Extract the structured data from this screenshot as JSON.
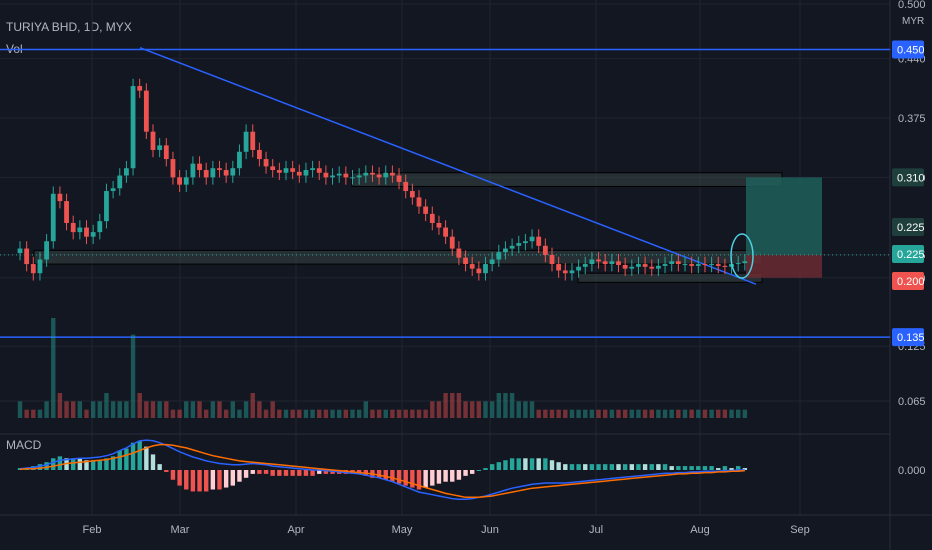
{
  "header": {
    "symbol": "TURIYA BHD, 1D, MYX",
    "vol_label": "Vol",
    "macd_label": "MACD",
    "currency": "MYR"
  },
  "colors": {
    "background": "#131722",
    "grid": "#1f2430",
    "up": "#26a69a",
    "down": "#ef5350",
    "trendline": "#2962ff",
    "hline": "#2962ff",
    "text": "#b2b5be",
    "macd_line": "#2962ff",
    "signal_line": "#ff6d00",
    "target_zone": "#1f5f5b",
    "stop_zone": "#6b2a31"
  },
  "chart_data": {
    "type": "candlestick",
    "x_ticks": [
      "Feb",
      "Mar",
      "Apr",
      "May",
      "Jun",
      "Jul",
      "Aug",
      "Sep"
    ],
    "price_ticks": [
      0.5,
      0.44,
      0.375,
      0.31,
      0.225,
      0.2,
      0.125,
      0.065
    ],
    "price_tags": [
      {
        "value": "0.450",
        "color": "#2962ff"
      },
      {
        "value": "0.310",
        "color": "#1f3f3c"
      },
      {
        "value": "0.225",
        "color": "#1f3f3c"
      },
      {
        "value": "0.225",
        "color": "#26a69a"
      },
      {
        "value": "0.200",
        "color": "#ef5350"
      },
      {
        "value": "0.135",
        "color": "#2962ff"
      }
    ],
    "macd_ticks": [
      "0.000"
    ],
    "horizontal_lines": [
      0.45,
      0.135
    ],
    "trendline": {
      "from": 0.452,
      "to": 0.193
    },
    "zones": [
      {
        "name": "resistance",
        "low": 0.3,
        "high": 0.315
      },
      {
        "name": "support",
        "low": 0.215,
        "high": 0.23
      },
      {
        "name": "lower-box",
        "low": 0.195,
        "high": 0.205
      }
    ],
    "position": {
      "entry": 0.225,
      "target": 0.31,
      "stop": 0.2
    },
    "close": [
      0.232,
      0.215,
      0.205,
      0.22,
      0.24,
      0.292,
      0.284,
      0.26,
      0.25,
      0.255,
      0.245,
      0.25,
      0.262,
      0.295,
      0.298,
      0.312,
      0.32,
      0.41,
      0.405,
      0.36,
      0.34,
      0.345,
      0.33,
      0.31,
      0.302,
      0.31,
      0.325,
      0.318,
      0.31,
      0.32,
      0.318,
      0.312,
      0.32,
      0.338,
      0.36,
      0.34,
      0.33,
      0.322,
      0.318,
      0.315,
      0.32,
      0.316,
      0.312,
      0.318,
      0.32,
      0.315,
      0.31,
      0.312,
      0.314,
      0.31,
      0.31,
      0.312,
      0.315,
      0.313,
      0.31,
      0.315,
      0.312,
      0.305,
      0.295,
      0.288,
      0.278,
      0.27,
      0.26,
      0.255,
      0.245,
      0.232,
      0.222,
      0.215,
      0.21,
      0.205,
      0.215,
      0.22,
      0.228,
      0.232,
      0.235,
      0.238,
      0.24,
      0.245,
      0.235,
      0.225,
      0.215,
      0.208,
      0.205,
      0.208,
      0.212,
      0.215,
      0.22,
      0.218,
      0.215,
      0.218,
      0.214,
      0.21,
      0.212,
      0.215,
      0.212,
      0.21,
      0.213,
      0.215,
      0.218,
      0.215,
      0.215,
      0.213,
      0.215,
      0.214,
      0.215,
      0.213,
      0.212,
      0.215,
      0.216,
      0.218
    ],
    "volume": [
      2,
      1,
      1,
      1,
      2,
      12,
      3,
      2,
      2,
      2,
      1,
      2,
      2,
      3,
      2,
      2,
      2,
      10,
      3,
      2,
      2,
      2,
      2,
      1,
      1,
      2,
      2,
      2,
      1,
      2,
      2,
      1,
      2,
      1,
      2,
      3,
      2,
      1,
      2,
      1,
      1,
      1,
      1,
      1,
      1,
      1,
      1,
      1,
      1,
      1,
      1,
      1,
      2,
      1,
      1,
      1,
      1,
      1,
      1,
      1,
      1,
      1,
      2,
      2,
      3,
      3,
      3,
      2,
      2,
      2,
      2,
      2,
      3,
      3,
      3,
      2,
      2,
      2,
      1,
      1,
      1,
      1,
      1,
      1,
      1,
      1,
      1,
      1,
      1,
      1,
      1,
      1,
      1,
      1,
      1,
      1,
      1,
      1,
      1,
      1,
      1,
      1,
      1,
      1,
      1,
      1,
      1,
      1,
      1,
      1
    ],
    "macd": [
      0.002,
      0.003,
      0.004,
      0.006,
      0.008,
      0.012,
      0.015,
      0.016,
      0.017,
      0.018,
      0.018,
      0.019,
      0.02,
      0.022,
      0.025,
      0.03,
      0.034,
      0.04,
      0.045,
      0.046,
      0.045,
      0.042,
      0.038,
      0.033,
      0.028,
      0.024,
      0.02,
      0.017,
      0.014,
      0.012,
      0.01,
      0.009,
      0.008,
      0.008,
      0.009,
      0.01,
      0.009,
      0.008,
      0.006,
      0.005,
      0.004,
      0.003,
      0.002,
      0.001,
      0.0,
      0.0,
      -0.001,
      -0.002,
      -0.003,
      -0.004,
      -0.005,
      -0.006,
      -0.008,
      -0.01,
      -0.012,
      -0.015,
      -0.018,
      -0.022,
      -0.026,
      -0.03,
      -0.034,
      -0.036,
      -0.038,
      -0.04,
      -0.042,
      -0.044,
      -0.045,
      -0.045,
      -0.044,
      -0.042,
      -0.04,
      -0.037,
      -0.034,
      -0.031,
      -0.028,
      -0.026,
      -0.024,
      -0.022,
      -0.021,
      -0.02,
      -0.02,
      -0.02,
      -0.02,
      -0.019,
      -0.018,
      -0.017,
      -0.016,
      -0.015,
      -0.014,
      -0.013,
      -0.012,
      -0.011,
      -0.01,
      -0.009,
      -0.008,
      -0.007,
      -0.006,
      -0.005,
      -0.005,
      -0.004,
      -0.004,
      -0.003,
      -0.003,
      -0.002,
      -0.002,
      -0.002,
      -0.001,
      -0.001,
      0.0,
      0.0
    ],
    "signal": [
      0.001,
      0.002,
      0.002,
      0.003,
      0.004,
      0.006,
      0.008,
      0.01,
      0.011,
      0.012,
      0.013,
      0.014,
      0.015,
      0.016,
      0.018,
      0.02,
      0.023,
      0.026,
      0.03,
      0.034,
      0.037,
      0.039,
      0.039,
      0.038,
      0.036,
      0.034,
      0.031,
      0.028,
      0.025,
      0.022,
      0.02,
      0.018,
      0.016,
      0.014,
      0.013,
      0.012,
      0.011,
      0.01,
      0.009,
      0.008,
      0.007,
      0.006,
      0.005,
      0.004,
      0.003,
      0.002,
      0.001,
      0.0,
      -0.001,
      -0.002,
      -0.003,
      -0.004,
      -0.005,
      -0.006,
      -0.008,
      -0.01,
      -0.012,
      -0.015,
      -0.018,
      -0.021,
      -0.024,
      -0.027,
      -0.03,
      -0.033,
      -0.036,
      -0.038,
      -0.04,
      -0.042,
      -0.042,
      -0.042,
      -0.041,
      -0.04,
      -0.038,
      -0.036,
      -0.034,
      -0.032,
      -0.03,
      -0.028,
      -0.027,
      -0.026,
      -0.025,
      -0.024,
      -0.023,
      -0.022,
      -0.021,
      -0.02,
      -0.019,
      -0.018,
      -0.017,
      -0.016,
      -0.015,
      -0.014,
      -0.013,
      -0.012,
      -0.011,
      -0.01,
      -0.009,
      -0.008,
      -0.007,
      -0.006,
      -0.006,
      -0.005,
      -0.005,
      -0.004,
      -0.004,
      -0.003,
      -0.003,
      -0.002,
      -0.002,
      -0.001
    ]
  }
}
